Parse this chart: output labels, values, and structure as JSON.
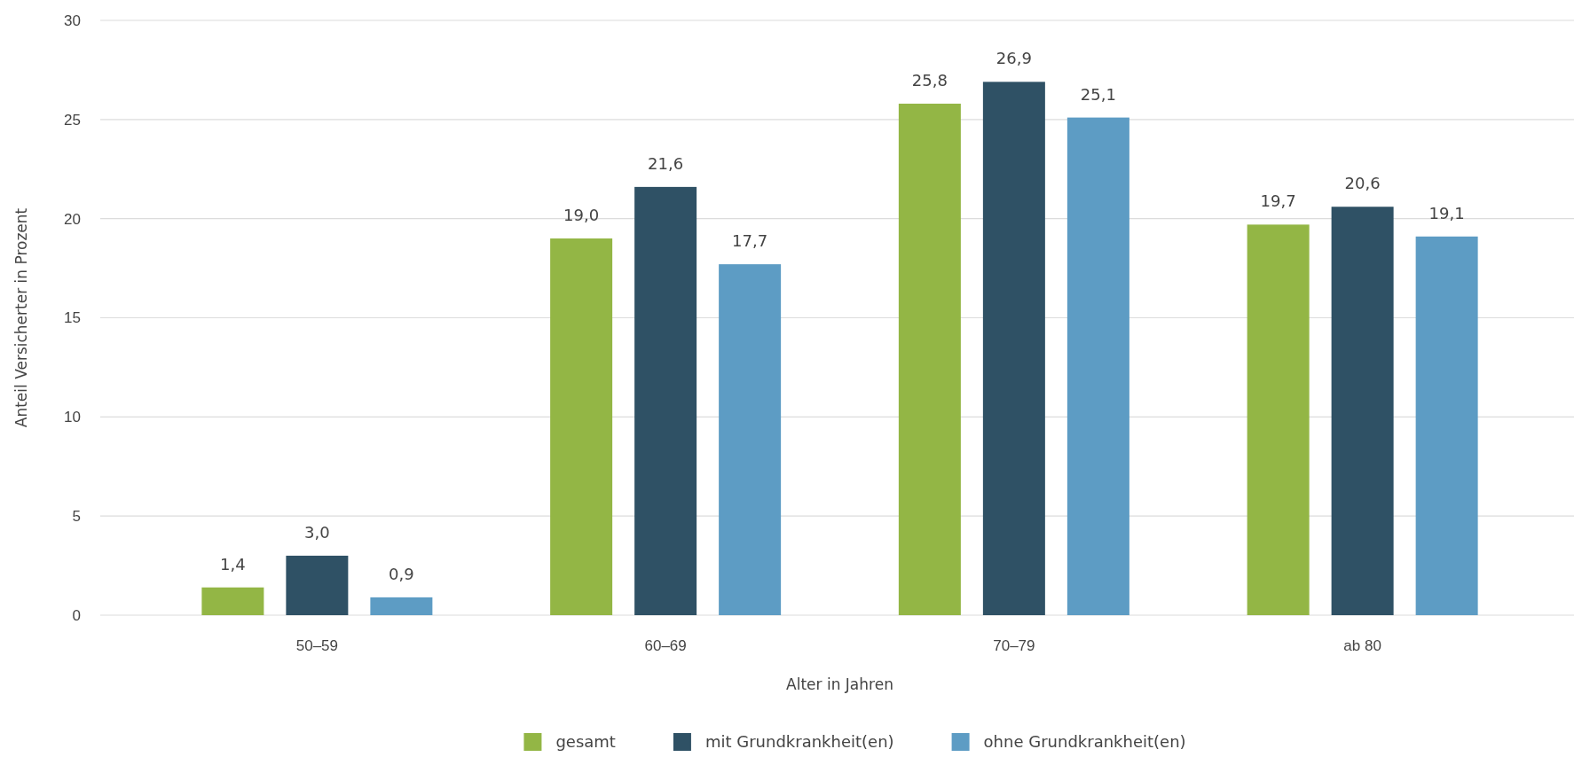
{
  "chart_data": {
    "type": "bar",
    "xlabel": "Alter in Jahren",
    "ylabel": "Anteil Versicherter  in Prozent",
    "categories": [
      "50–59",
      "60–69",
      "70–79",
      "ab 80"
    ],
    "series": [
      {
        "name": "gesamt",
        "color": "#93b645",
        "values": [
          1.4,
          19.0,
          25.8,
          19.7
        ],
        "value_labels": [
          "1,4",
          "19,0",
          "25,8",
          "19,7"
        ]
      },
      {
        "name": "mit Grundkrankheit(en)",
        "color": "#2f5165",
        "values": [
          3.0,
          21.6,
          26.9,
          20.6
        ],
        "value_labels": [
          "3,0",
          "21,6",
          "26,9",
          "20,6"
        ]
      },
      {
        "name": "ohne Grundkrankheit(en)",
        "color": "#5d9cc4",
        "values": [
          0.9,
          17.7,
          25.1,
          19.1
        ],
        "value_labels": [
          "0,9",
          "17,7",
          "25,1",
          "19,1"
        ]
      }
    ],
    "ylim": [
      0,
      30
    ],
    "yticks": [
      0,
      5,
      10,
      15,
      20,
      25,
      30
    ],
    "grid": "y",
    "legend": "bottom"
  }
}
